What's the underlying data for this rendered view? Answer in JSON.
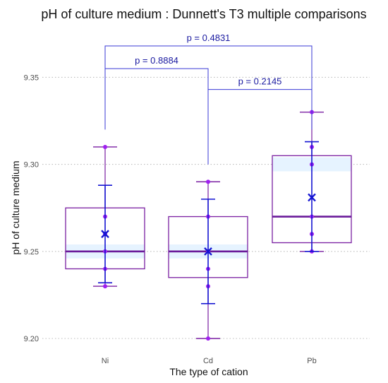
{
  "chart_data": {
    "type": "box",
    "title": "pH of culture medium : Dunnett's T3 multiple comparisons",
    "xlabel": "The type of cation",
    "ylabel": "pH of culture medium",
    "categories": [
      "Ni",
      "Cd",
      "Pb"
    ],
    "ylim": [
      9.195,
      9.375
    ],
    "yticks": [
      9.2,
      9.25,
      9.3,
      9.35
    ],
    "ytick_labels": [
      "9.20",
      "9.25",
      "9.30",
      "9.35"
    ],
    "grid": "horizontal dotted",
    "groups": [
      {
        "name": "Ni",
        "whisker_low": 9.23,
        "q1": 9.24,
        "median": 9.25,
        "q3": 9.275,
        "whisker_high": 9.31,
        "mean": 9.26,
        "ci_low": 9.232,
        "ci_high": 9.288,
        "ci_band": [
          9.246,
          9.254
        ],
        "points": [
          9.23,
          9.24,
          9.25,
          9.26,
          9.27,
          9.31
        ]
      },
      {
        "name": "Cd",
        "whisker_low": 9.2,
        "q1": 9.235,
        "median": 9.25,
        "q3": 9.27,
        "whisker_high": 9.29,
        "mean": 9.25,
        "ci_low": 9.22,
        "ci_high": 9.28,
        "ci_band": [
          9.246,
          9.254
        ],
        "points": [
          9.2,
          9.23,
          9.24,
          9.25,
          9.27,
          9.29
        ]
      },
      {
        "name": "Pb",
        "whisker_low": 9.25,
        "q1": 9.255,
        "median": 9.27,
        "q3": 9.305,
        "whisker_high": 9.33,
        "mean": 9.281,
        "ci_low": 9.25,
        "ci_high": 9.313,
        "ci_band": [
          9.296,
          9.304
        ],
        "points": [
          9.25,
          9.26,
          9.27,
          9.3,
          9.31,
          9.33
        ]
      }
    ],
    "comparisons": [
      {
        "from": "Ni",
        "to": "Cd",
        "label": "p =  0.8884",
        "from_y": 9.32,
        "to_y": 9.3,
        "bar_y": 9.355
      },
      {
        "from": "Cd",
        "to": "Pb",
        "label": "p =  0.2145",
        "from_y": 9.3,
        "to_y": 9.32,
        "bar_y": 9.343
      },
      {
        "from": "Ni",
        "to": "Pb",
        "label": "p =  0.4831",
        "from_y": 9.35,
        "to_y": 9.33,
        "bar_y": 9.368
      }
    ],
    "colors": {
      "box": "#7a1fa2",
      "median": "#6a1b9a",
      "points": "#a020f0",
      "mean_ci": "#1414d2",
      "comparison": "#3a3ad6",
      "ci_band": "#e6f3ff",
      "grid": "#bdbdbd"
    }
  }
}
